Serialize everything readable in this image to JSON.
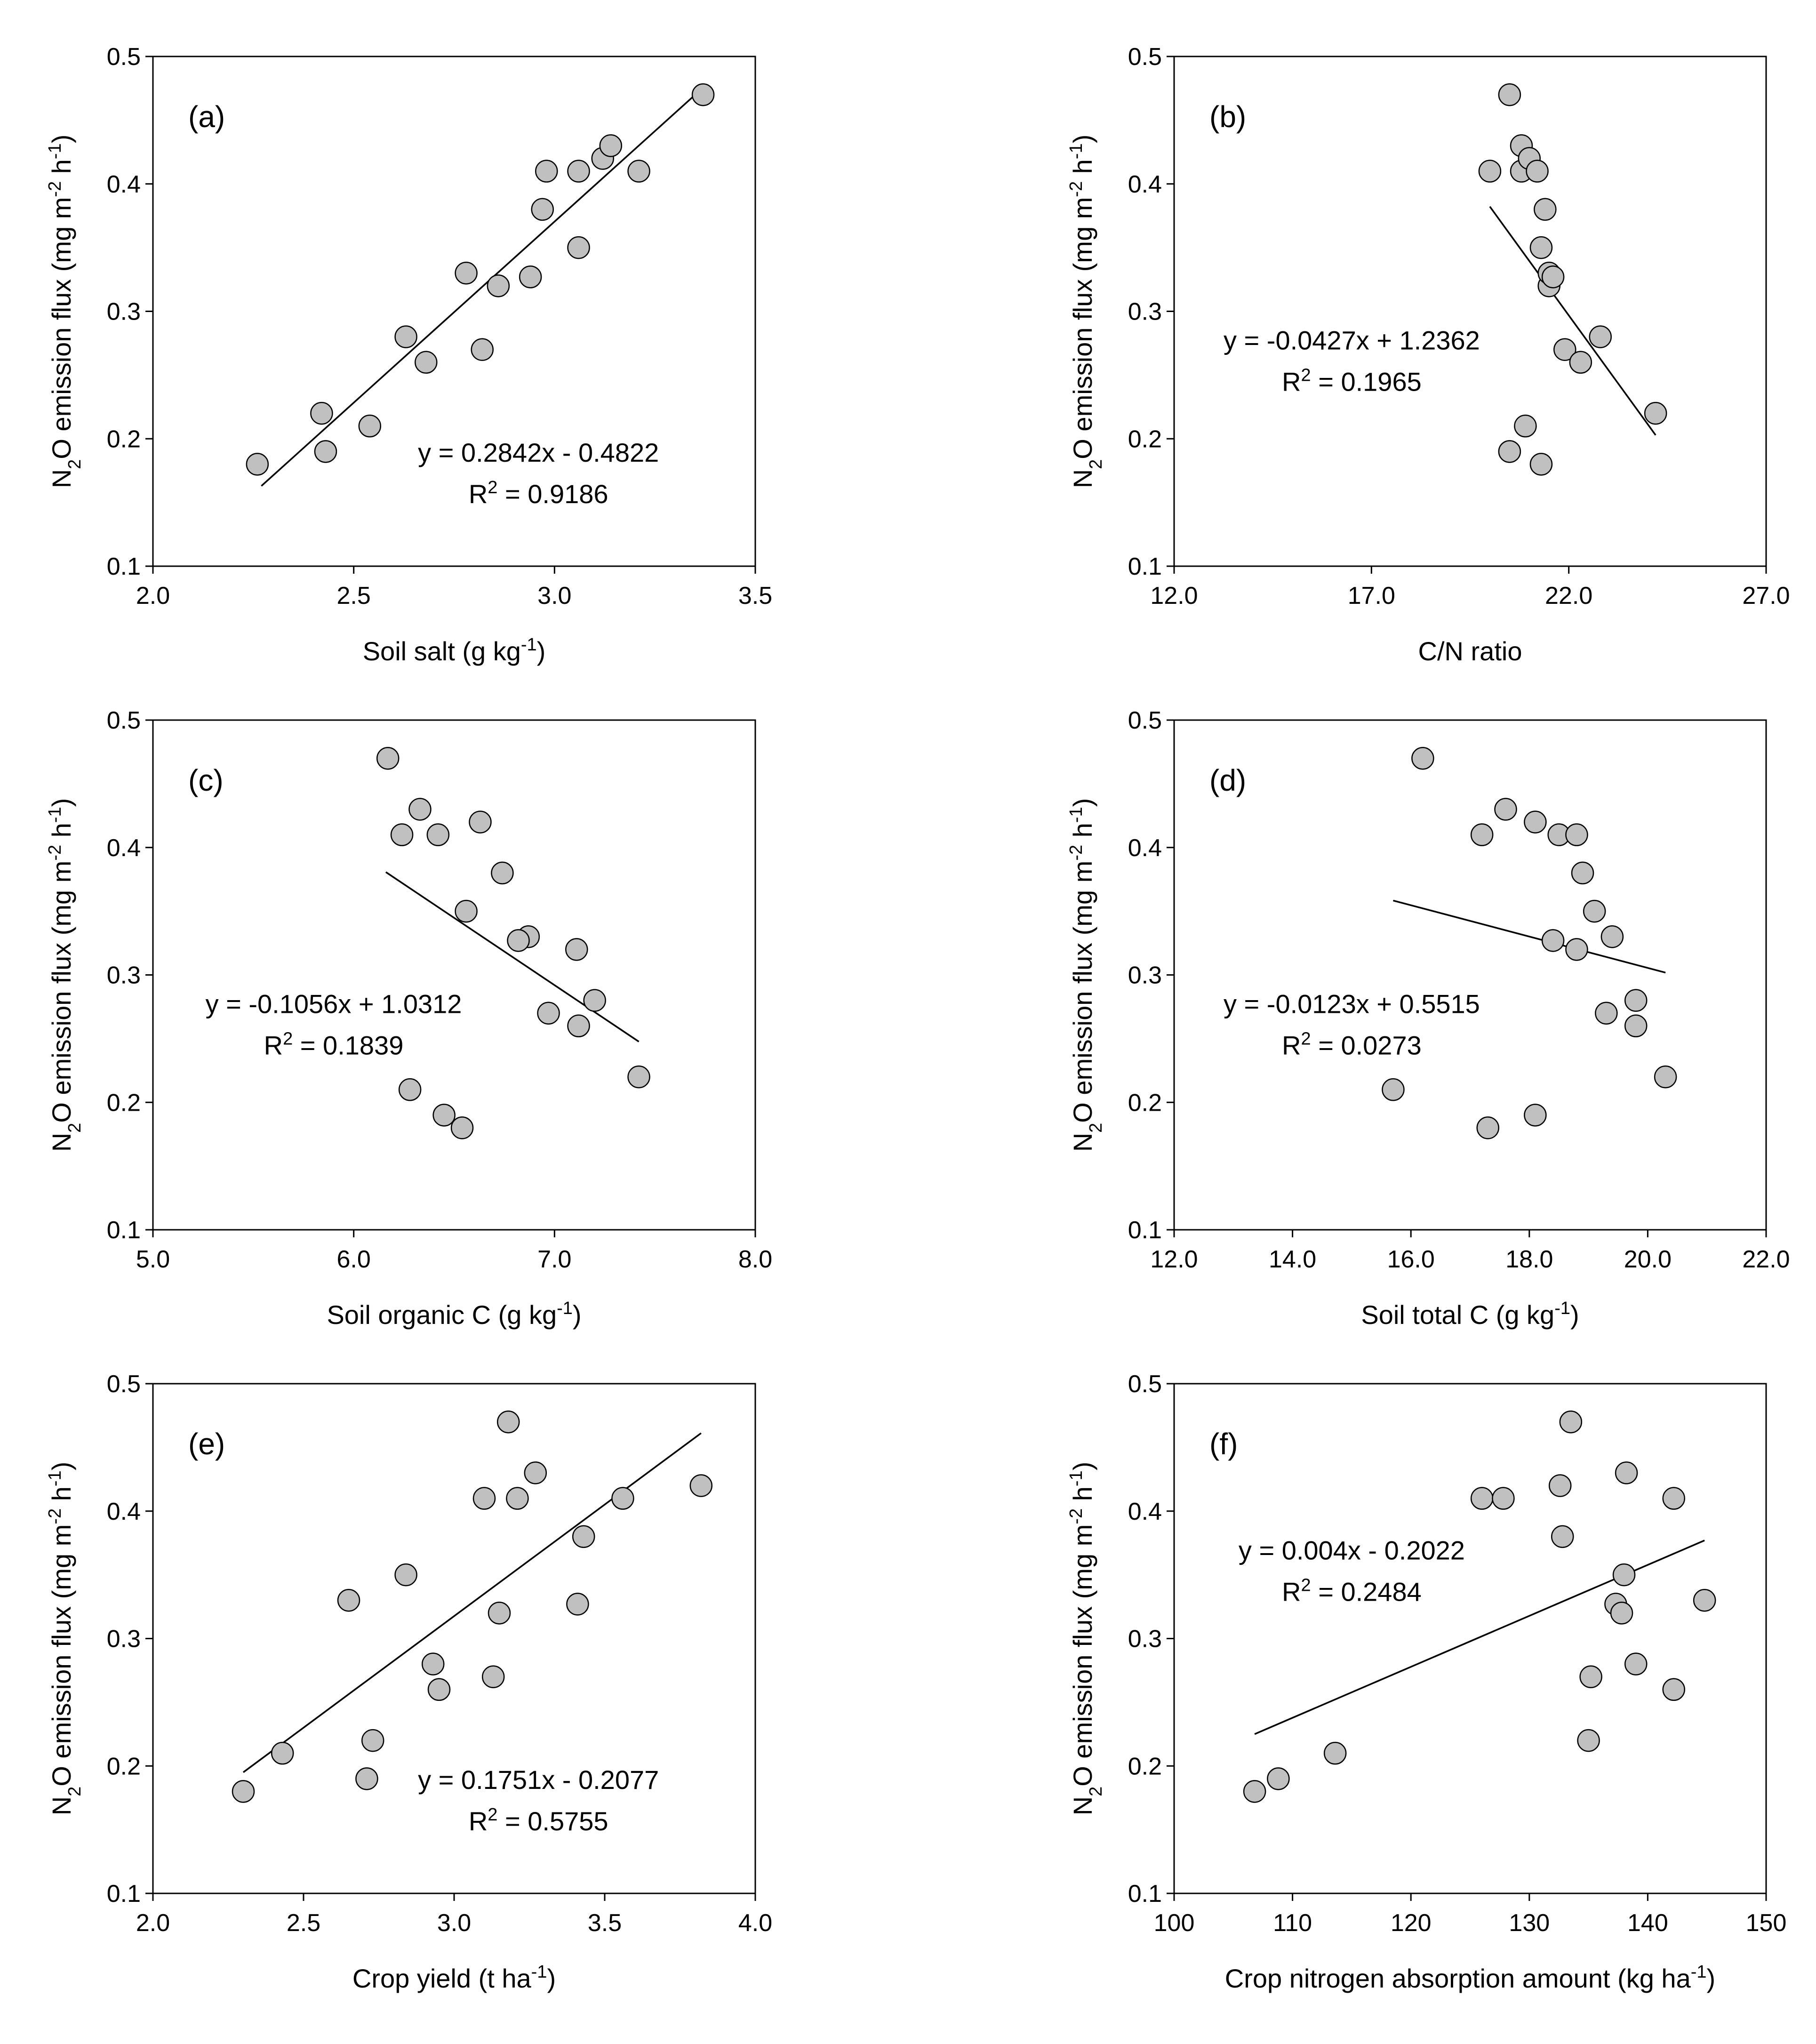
{
  "figure": {
    "y_axis_label": {
      "main": "N",
      "sub": "2",
      "rest": "O emission flux (mg m",
      "sup1": "-2",
      "mid": " h",
      "sup2": "-1",
      "end": ")"
    },
    "y_ticks": [
      "0.1",
      "0.2",
      "0.3",
      "0.4",
      "0.5"
    ]
  },
  "chart_data": [
    {
      "id": "a",
      "type": "scatter",
      "panel_label": "(a)",
      "xlabel": {
        "pre": "Soil salt (g kg",
        "sup": "-1",
        "post": ")"
      },
      "xlim": [
        2.0,
        3.5
      ],
      "ylim": [
        0.1,
        0.5
      ],
      "x_ticks": [
        "2.0",
        "2.5",
        "3.0",
        "3.5"
      ],
      "points": [
        [
          2.26,
          0.18
        ],
        [
          2.42,
          0.22
        ],
        [
          2.43,
          0.19
        ],
        [
          2.54,
          0.21
        ],
        [
          2.63,
          0.28
        ],
        [
          2.68,
          0.26
        ],
        [
          2.78,
          0.33
        ],
        [
          2.82,
          0.27
        ],
        [
          2.86,
          0.32
        ],
        [
          2.94,
          0.327
        ],
        [
          2.97,
          0.38
        ],
        [
          2.98,
          0.41
        ],
        [
          3.06,
          0.41
        ],
        [
          3.06,
          0.35
        ],
        [
          3.12,
          0.42
        ],
        [
          3.14,
          0.43
        ],
        [
          3.21,
          0.41
        ],
        [
          3.37,
          0.47
        ]
      ],
      "trendline": {
        "slope": 0.2842,
        "intercept": -0.4822,
        "x_range": [
          2.27,
          3.37
        ]
      },
      "equation": "y = 0.2842x - 0.4822",
      "r2": {
        "pre": "R",
        "sup": "2",
        "post": " = 0.9186"
      },
      "equation_anchor": "lower-right"
    },
    {
      "id": "b",
      "type": "scatter",
      "panel_label": "(b)",
      "xlabel": {
        "pre": "C/N ratio",
        "sup": "",
        "post": ""
      },
      "xlim": [
        12.0,
        27.0
      ],
      "ylim": [
        0.1,
        0.5
      ],
      "x_ticks": [
        "12.0",
        "17.0",
        "22.0",
        "27.0"
      ],
      "points": [
        [
          20.0,
          0.41
        ],
        [
          20.5,
          0.47
        ],
        [
          20.8,
          0.41
        ],
        [
          20.8,
          0.43
        ],
        [
          21.0,
          0.42
        ],
        [
          21.2,
          0.41
        ],
        [
          21.3,
          0.35
        ],
        [
          21.4,
          0.38
        ],
        [
          21.5,
          0.32
        ],
        [
          21.5,
          0.33
        ],
        [
          21.6,
          0.327
        ],
        [
          21.9,
          0.27
        ],
        [
          22.3,
          0.26
        ],
        [
          22.8,
          0.28
        ],
        [
          24.2,
          0.22
        ],
        [
          20.9,
          0.21
        ],
        [
          20.5,
          0.19
        ],
        [
          21.3,
          0.18
        ]
      ],
      "trendline": {
        "slope": -0.0427,
        "intercept": 1.2362,
        "x_range": [
          20.0,
          24.2
        ]
      },
      "equation": "y = -0.0427x + 1.2362",
      "r2": {
        "pre": "R",
        "sup": "2",
        "post": " = 0.1965"
      },
      "equation_anchor": "middle-left"
    },
    {
      "id": "c",
      "type": "scatter",
      "panel_label": "(c)",
      "xlabel": {
        "pre": "Soil organic C (g kg",
        "sup": "-1",
        "post": ")"
      },
      "xlim": [
        5.0,
        8.0
      ],
      "ylim": [
        0.1,
        0.5
      ],
      "x_ticks": [
        "5.0",
        "6.0",
        "7.0",
        "8.0"
      ],
      "points": [
        [
          6.17,
          0.47
        ],
        [
          6.24,
          0.41
        ],
        [
          6.33,
          0.43
        ],
        [
          6.42,
          0.41
        ],
        [
          6.63,
          0.42
        ],
        [
          6.74,
          0.38
        ],
        [
          6.56,
          0.35
        ],
        [
          6.87,
          0.33
        ],
        [
          6.82,
          0.327
        ],
        [
          7.11,
          0.32
        ],
        [
          7.2,
          0.28
        ],
        [
          6.97,
          0.27
        ],
        [
          7.12,
          0.26
        ],
        [
          7.42,
          0.22
        ],
        [
          6.28,
          0.21
        ],
        [
          6.45,
          0.19
        ],
        [
          6.54,
          0.18
        ]
      ],
      "trendline": {
        "slope": -0.1056,
        "intercept": 1.0312,
        "x_range": [
          6.16,
          7.42
        ]
      },
      "equation": "y = -0.1056x + 1.0312",
      "r2": {
        "pre": "R",
        "sup": "2",
        "post": " = 0.1839"
      },
      "equation_anchor": "middle-left"
    },
    {
      "id": "d",
      "type": "scatter",
      "panel_label": "(d)",
      "xlabel": {
        "pre": "Soil total C (g kg",
        "sup": "-1",
        "post": ")"
      },
      "xlim": [
        12.0,
        22.0
      ],
      "ylim": [
        0.1,
        0.5
      ],
      "x_ticks": [
        "12.0",
        "14.0",
        "16.0",
        "18.0",
        "20.0",
        "22.0"
      ],
      "points": [
        [
          16.2,
          0.47
        ],
        [
          17.6,
          0.43
        ],
        [
          17.2,
          0.41
        ],
        [
          18.1,
          0.42
        ],
        [
          18.5,
          0.41
        ],
        [
          18.8,
          0.41
        ],
        [
          18.9,
          0.38
        ],
        [
          19.1,
          0.35
        ],
        [
          19.4,
          0.33
        ],
        [
          18.4,
          0.327
        ],
        [
          18.8,
          0.32
        ],
        [
          19.3,
          0.27
        ],
        [
          19.8,
          0.28
        ],
        [
          19.8,
          0.26
        ],
        [
          20.3,
          0.22
        ],
        [
          15.7,
          0.21
        ],
        [
          18.1,
          0.19
        ],
        [
          17.3,
          0.18
        ]
      ],
      "trendline": {
        "slope": -0.0123,
        "intercept": 0.5515,
        "x_range": [
          15.7,
          20.3
        ]
      },
      "equation": "y = -0.0123x + 0.5515",
      "r2": {
        "pre": "R",
        "sup": "2",
        "post": " = 0.0273"
      },
      "equation_anchor": "middle-left"
    },
    {
      "id": "e",
      "type": "scatter",
      "panel_label": "(e)",
      "xlabel": {
        "pre": "Crop yield (t ha",
        "sup": "-1",
        "post": ")"
      },
      "xlim": [
        2.0,
        4.0
      ],
      "ylim": [
        0.1,
        0.5
      ],
      "x_ticks": [
        "2.0",
        "2.5",
        "3.0",
        "3.5",
        "4.0"
      ],
      "points": [
        [
          2.3,
          0.18
        ],
        [
          2.43,
          0.21
        ],
        [
          2.65,
          0.33
        ],
        [
          2.71,
          0.19
        ],
        [
          2.73,
          0.22
        ],
        [
          2.84,
          0.35
        ],
        [
          2.93,
          0.28
        ],
        [
          2.95,
          0.26
        ],
        [
          3.1,
          0.41
        ],
        [
          3.13,
          0.27
        ],
        [
          3.15,
          0.32
        ],
        [
          3.18,
          0.47
        ],
        [
          3.21,
          0.41
        ],
        [
          3.27,
          0.43
        ],
        [
          3.41,
          0.327
        ],
        [
          3.43,
          0.38
        ],
        [
          3.56,
          0.41
        ],
        [
          3.82,
          0.42
        ]
      ],
      "trendline": {
        "slope": 0.1751,
        "intercept": -0.2077,
        "x_range": [
          2.3,
          3.82
        ]
      },
      "equation": "y = 0.1751x - 0.2077",
      "r2": {
        "pre": "R",
        "sup": "2",
        "post": " = 0.5755"
      },
      "equation_anchor": "lower-right"
    },
    {
      "id": "f",
      "type": "scatter",
      "panel_label": "(f)",
      "xlabel": {
        "pre": "Crop nitrogen absorption amount (kg ha",
        "sup": "-1",
        "post": ")"
      },
      "xlim": [
        100,
        150
      ],
      "ylim": [
        0.1,
        0.5
      ],
      "x_ticks": [
        "100",
        "110",
        "120",
        "130",
        "140",
        "150"
      ],
      "points": [
        [
          106.8,
          0.18
        ],
        [
          108.8,
          0.19
        ],
        [
          113.6,
          0.21
        ],
        [
          126.0,
          0.41
        ],
        [
          127.8,
          0.41
        ],
        [
          132.6,
          0.42
        ],
        [
          132.8,
          0.38
        ],
        [
          133.5,
          0.47
        ],
        [
          137.3,
          0.327
        ],
        [
          137.8,
          0.32
        ],
        [
          138.0,
          0.35
        ],
        [
          138.2,
          0.43
        ],
        [
          139.0,
          0.28
        ],
        [
          135.0,
          0.22
        ],
        [
          135.2,
          0.27
        ],
        [
          142.2,
          0.41
        ],
        [
          142.2,
          0.26
        ],
        [
          144.8,
          0.33
        ]
      ],
      "trendline": {
        "slope": 0.004,
        "intercept": -0.2022,
        "x_range": [
          106.8,
          144.8
        ]
      },
      "equation": "y = 0.004x - 0.2022",
      "r2": {
        "pre": "R",
        "sup": "2",
        "post": " = 0.2484"
      },
      "equation_anchor": "upper-left"
    }
  ]
}
